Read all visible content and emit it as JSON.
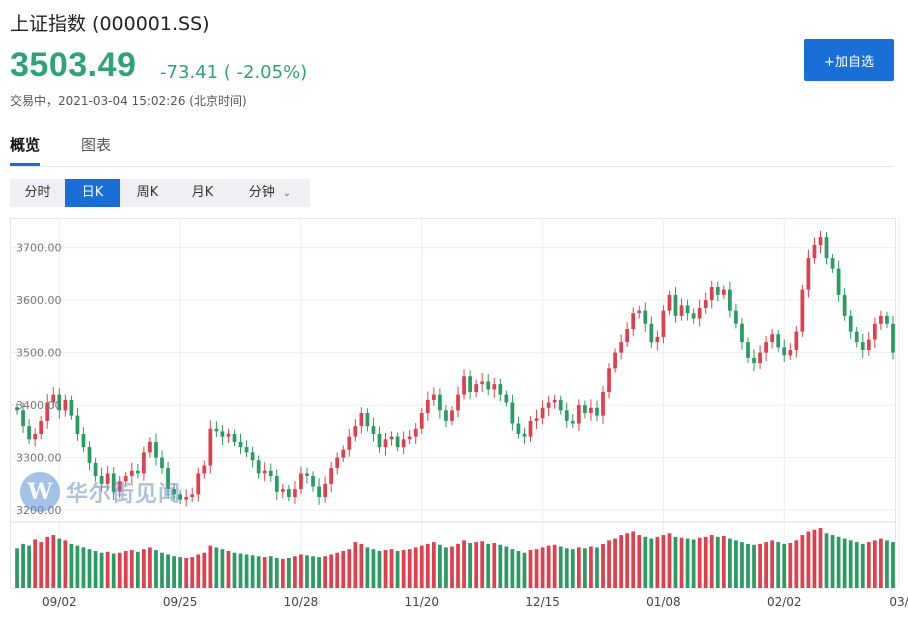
{
  "header": {
    "title": "上证指数 (000001.SS)",
    "price": "3503.49",
    "change": "-73.41 ( -2.05%)",
    "status": "交易中，2021-03-04 15:02:26 (北京时间)",
    "add_button": "+加自选"
  },
  "tabs": [
    {
      "label": "概览",
      "active": true
    },
    {
      "label": "图表",
      "active": false
    }
  ],
  "periods": [
    {
      "label": "分时",
      "active": false
    },
    {
      "label": "日K",
      "active": true
    },
    {
      "label": "周K",
      "active": false
    },
    {
      "label": "月K",
      "active": false
    },
    {
      "label": "分钟",
      "active": false,
      "icon": "chevron-down-icon"
    }
  ],
  "watermark": {
    "logo": "W",
    "text": "华尔街见闻"
  },
  "colors": {
    "up": "#e0404d",
    "down": "#2a9b62",
    "accent": "#1a6fd6",
    "grid": "#eeeeee"
  },
  "chart_data": {
    "type": "candlestick",
    "y_ticks": [
      "3700.00",
      "3600.00",
      "3500.00",
      "3400.00",
      "3300.00",
      "3200.00"
    ],
    "y_tick_values": [
      3700,
      3600,
      3500,
      3400,
      3300,
      3200
    ],
    "ylim": [
      3185,
      3745
    ],
    "x_ticks": [
      "09/02",
      "09/25",
      "10/28",
      "11/20",
      "12/15",
      "01/08",
      "02/02",
      "03/"
    ],
    "x_tick_index": [
      7,
      27,
      47,
      67,
      87,
      107,
      127,
      146
    ],
    "grid": true,
    "closes": [
      3390,
      3360,
      3335,
      3345,
      3370,
      3405,
      3420,
      3390,
      3410,
      3380,
      3345,
      3320,
      3290,
      3265,
      3250,
      3270,
      3235,
      3255,
      3265,
      3275,
      3270,
      3310,
      3330,
      3300,
      3280,
      3240,
      3230,
      3220,
      3225,
      3230,
      3270,
      3285,
      3355,
      3350,
      3340,
      3345,
      3330,
      3320,
      3310,
      3295,
      3270,
      3275,
      3265,
      3235,
      3240,
      3225,
      3240,
      3270,
      3265,
      3245,
      3225,
      3250,
      3280,
      3300,
      3315,
      3340,
      3360,
      3385,
      3360,
      3345,
      3320,
      3335,
      3340,
      3320,
      3335,
      3340,
      3355,
      3385,
      3410,
      3420,
      3390,
      3370,
      3390,
      3420,
      3455,
      3425,
      3440,
      3445,
      3430,
      3440,
      3420,
      3405,
      3365,
      3345,
      3340,
      3370,
      3375,
      3395,
      3405,
      3410,
      3390,
      3370,
      3365,
      3400,
      3385,
      3395,
      3380,
      3425,
      3470,
      3500,
      3520,
      3545,
      3575,
      3580,
      3555,
      3520,
      3530,
      3580,
      3610,
      3570,
      3590,
      3575,
      3565,
      3585,
      3600,
      3625,
      3610,
      3620,
      3580,
      3555,
      3520,
      3490,
      3480,
      3500,
      3520,
      3535,
      3510,
      3495,
      3505,
      3540,
      3620,
      3680,
      3705,
      3720,
      3680,
      3660,
      3610,
      3570,
      3540,
      3520,
      3505,
      3525,
      3555,
      3570,
      3555,
      3500
    ],
    "volume": {
      "unit": "relative",
      "values": [
        45,
        50,
        48,
        55,
        52,
        58,
        60,
        56,
        54,
        50,
        48,
        46,
        44,
        42,
        40,
        41,
        39,
        40,
        42,
        43,
        41,
        44,
        46,
        43,
        40,
        38,
        36,
        35,
        34,
        35,
        38,
        40,
        48,
        46,
        44,
        42,
        40,
        39,
        38,
        37,
        36,
        35,
        36,
        34,
        33,
        34,
        36,
        38,
        37,
        36,
        35,
        36,
        38,
        40,
        42,
        44,
        52,
        50,
        46,
        44,
        42,
        43,
        44,
        42,
        43,
        44,
        46,
        48,
        50,
        52,
        49,
        46,
        47,
        50,
        54,
        51,
        52,
        53,
        50,
        51,
        49,
        47,
        44,
        42,
        40,
        43,
        44,
        46,
        48,
        49,
        47,
        45,
        44,
        46,
        45,
        47,
        46,
        50,
        54,
        56,
        60,
        62,
        64,
        60,
        58,
        56,
        58,
        60,
        62,
        58,
        57,
        56,
        55,
        57,
        58,
        60,
        58,
        59,
        56,
        54,
        52,
        50,
        49,
        50,
        52,
        54,
        52,
        50,
        51,
        54,
        60,
        64,
        66,
        68,
        62,
        60,
        58,
        56,
        54,
        52,
        50,
        52,
        54,
        56,
        54,
        52
      ]
    }
  }
}
